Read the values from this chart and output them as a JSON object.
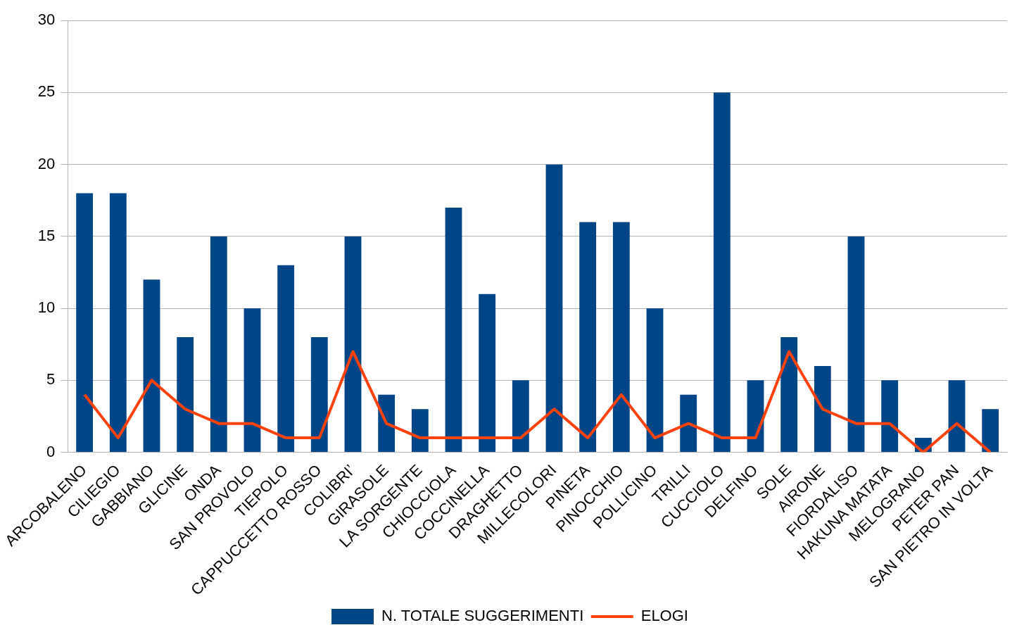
{
  "chart_data": {
    "type": "bar",
    "categories": [
      "ARCOBALENO",
      "CILIEGIO",
      "GABBIANO",
      "GLICINE",
      "ONDA",
      "SAN PROVOLO",
      "TIEPOLO",
      "CAPPUCCETTO ROSSO",
      "COLIBRI’",
      "GIRASOLE",
      "LA SORGENTE",
      "CHIOCCIOLA",
      "COCCINELLA",
      "DRAGHETTO",
      "MILLECOLORI",
      "PINETA",
      "PINOCCHIO",
      "POLLICINO",
      "TRILLI",
      "CUCCIOLO",
      "DELFINO",
      "SOLE",
      "AIRONE",
      "FIORDALISO",
      "HAKUNA MATATA",
      "MELOGRANO",
      "PETER PAN",
      "SAN PIETRO IN VOLTA"
    ],
    "series": [
      {
        "name": "N. TOTALE SUGGERIMENTI",
        "color": "#004586",
        "values": [
          18,
          18,
          12,
          8,
          15,
          10,
          13,
          8,
          15,
          4,
          3,
          17,
          11,
          5,
          20,
          16,
          16,
          10,
          4,
          25,
          5,
          8,
          6,
          15,
          5,
          1,
          5,
          3
        ]
      },
      {
        "name": "ELOGI",
        "type": "line",
        "color": "#ff420e",
        "values": [
          4,
          1,
          5,
          3,
          2,
          2,
          1,
          1,
          7,
          2,
          1,
          1,
          1,
          1,
          3,
          1,
          4,
          1,
          2,
          1,
          1,
          7,
          3,
          2,
          2,
          0,
          2,
          0
        ]
      }
    ],
    "ylim": [
      0,
      30
    ],
    "yticks": [
      0,
      5,
      10,
      15,
      20,
      25,
      30
    ],
    "grid": "y",
    "legend": "bottom",
    "marker": "none",
    "line_style": "solid"
  }
}
